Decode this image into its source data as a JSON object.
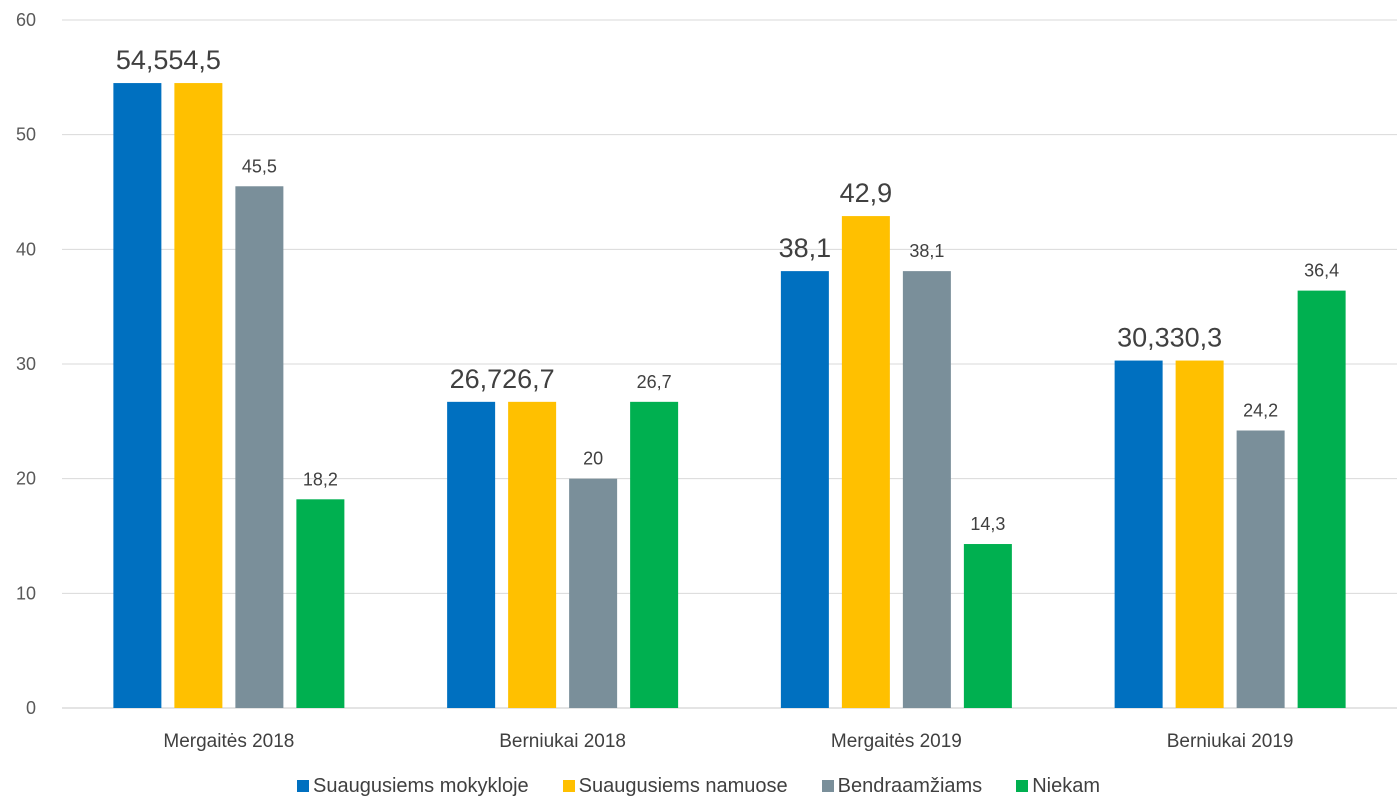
{
  "chart_data": {
    "type": "bar",
    "categories": [
      "Mergaitės 2018",
      "Berniukai 2018",
      "Mergaitės 2019",
      "Berniukai 2019"
    ],
    "series": [
      {
        "name": "Suaugusiems mokykloje",
        "color": "#0070C0",
        "values": [
          54.5,
          26.7,
          38.1,
          30.3
        ]
      },
      {
        "name": "Suaugusiems namuose",
        "color": "#FFC000",
        "values": [
          54.5,
          26.7,
          42.9,
          30.3
        ]
      },
      {
        "name": "Bendraamžiams",
        "color": "#7A8F9A",
        "values": [
          45.5,
          20,
          38.1,
          24.2
        ]
      },
      {
        "name": "Niekam",
        "color": "#00B050",
        "values": [
          18.2,
          26.7,
          14.3,
          36.4
        ]
      }
    ],
    "data_labels": [
      [
        "54,5",
        "54,5",
        "45,5",
        "18,2"
      ],
      [
        "26,7",
        "26,7",
        "20",
        "26,7"
      ],
      [
        "38,1",
        "42,9",
        "38,1",
        "14,3"
      ],
      [
        "30,3",
        "30,3",
        "24,2",
        "36,4"
      ]
    ],
    "large_labels": [
      [
        true,
        true,
        false,
        false
      ],
      [
        true,
        true,
        false,
        false
      ],
      [
        true,
        true,
        false,
        false
      ],
      [
        true,
        true,
        false,
        false
      ]
    ],
    "yticks": [
      "0",
      "10",
      "20",
      "30",
      "40",
      "50",
      "60"
    ],
    "ylim": [
      0,
      60
    ],
    "grid": true,
    "legend_position": "bottom",
    "title": "",
    "xlabel": "",
    "ylabel": ""
  }
}
